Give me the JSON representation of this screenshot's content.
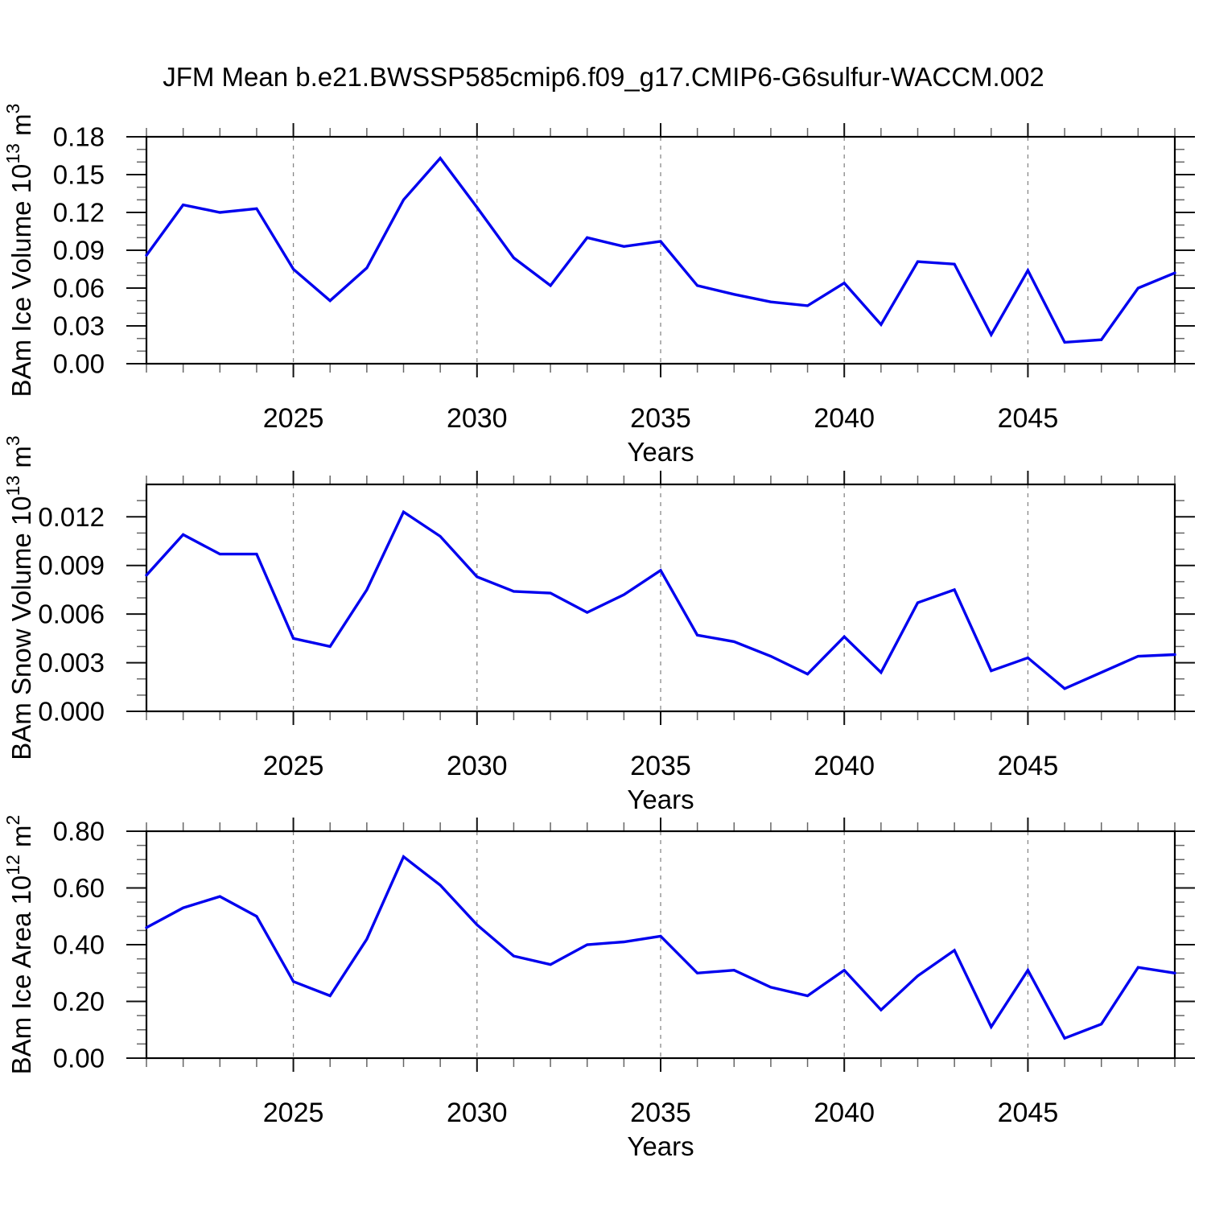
{
  "title": "JFM Mean b.e21.BWSSP585cmip6.f09_g17.CMIP6-G6sulfur-WACCM.002",
  "line_color": "#0000EE",
  "grid_color": "#888888",
  "frame_color": "#000000",
  "x_axis": {
    "label": "Years",
    "xlim": [
      2021,
      2049
    ],
    "major_ticks": [
      2025,
      2030,
      2035,
      2040,
      2045
    ],
    "minor_step": 1,
    "years": [
      2021,
      2022,
      2023,
      2024,
      2025,
      2026,
      2027,
      2028,
      2029,
      2030,
      2031,
      2032,
      2033,
      2034,
      2035,
      2036,
      2037,
      2038,
      2039,
      2040,
      2041,
      2042,
      2043,
      2044,
      2045,
      2046,
      2047,
      2048,
      2049
    ]
  },
  "chart_data": [
    {
      "type": "line",
      "name": "bam-ice-volume",
      "ylabel": {
        "base": "BAm Ice Volume 10",
        "exp": "13",
        "unit": " m",
        "unit_exp": "3"
      },
      "ylim": [
        0,
        0.18
      ],
      "ytick_step": 0.03,
      "yminor_step": 0.01,
      "ytick_decimals": 2,
      "ytick_labels": [
        "0.00",
        "0.03",
        "0.06",
        "0.09",
        "0.12",
        "0.15",
        "0.18"
      ],
      "series": [
        {
          "name": "ice_volume",
          "values": [
            0.086,
            0.126,
            0.12,
            0.123,
            0.075,
            0.05,
            0.076,
            0.13,
            0.163,
            0.124,
            0.084,
            0.062,
            0.1,
            0.093,
            0.097,
            0.062,
            0.055,
            0.049,
            0.046,
            0.064,
            0.031,
            0.081,
            0.079,
            0.023,
            0.074,
            0.017,
            0.019,
            0.06,
            0.072
          ]
        }
      ]
    },
    {
      "type": "line",
      "name": "bam-snow-volume",
      "ylabel": {
        "base": "BAm Snow Volume 10",
        "exp": "13",
        "unit": " m",
        "unit_exp": "3"
      },
      "ylim": [
        0,
        0.014
      ],
      "ytick_step": 0.003,
      "yminor_step": 0.001,
      "ytick_decimals": 3,
      "ytick_labels": [
        "0.000",
        "0.003",
        "0.006",
        "0.009",
        "0.012"
      ],
      "series": [
        {
          "name": "snow_volume",
          "values": [
            0.0084,
            0.0109,
            0.0097,
            0.0097,
            0.0045,
            0.004,
            0.0075,
            0.0123,
            0.0108,
            0.0083,
            0.0074,
            0.0073,
            0.0061,
            0.0072,
            0.0087,
            0.0047,
            0.0043,
            0.0034,
            0.0023,
            0.0046,
            0.0024,
            0.0067,
            0.0075,
            0.0025,
            0.0033,
            0.0014,
            0.0024,
            0.0034,
            0.0035
          ]
        }
      ]
    },
    {
      "type": "line",
      "name": "bam-ice-area",
      "ylabel": {
        "base": "BAm Ice Area 10",
        "exp": "12",
        "unit": " m",
        "unit_exp": "2"
      },
      "ylim": [
        0,
        0.8
      ],
      "ytick_step": 0.2,
      "yminor_step": 0.05,
      "ytick_decimals": 2,
      "ytick_labels": [
        "0.00",
        "0.20",
        "0.40",
        "0.60",
        "0.80"
      ],
      "series": [
        {
          "name": "ice_area",
          "values": [
            0.46,
            0.53,
            0.57,
            0.5,
            0.27,
            0.22,
            0.42,
            0.71,
            0.61,
            0.47,
            0.36,
            0.33,
            0.4,
            0.41,
            0.43,
            0.3,
            0.31,
            0.25,
            0.22,
            0.31,
            0.17,
            0.29,
            0.38,
            0.11,
            0.31,
            0.07,
            0.12,
            0.32,
            0.3
          ]
        }
      ]
    }
  ]
}
